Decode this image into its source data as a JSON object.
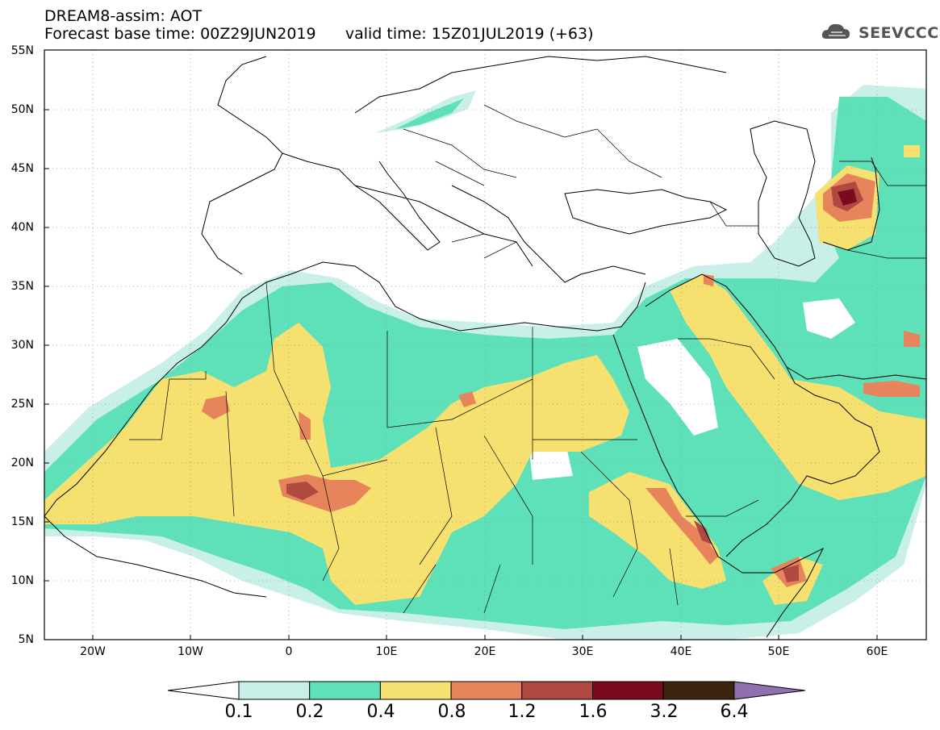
{
  "header": {
    "title": "DREAM8-assim: AOT",
    "subtitle": "Forecast base time: 00Z29JUN2019      valid time: 15Z01JUL2019 (+63)"
  },
  "logo": {
    "text": "SEEVCCC",
    "icon": "cloud-logo-icon"
  },
  "axes": {
    "lat_labels": [
      "55N",
      "50N",
      "45N",
      "40N",
      "35N",
      "30N",
      "25N",
      "20N",
      "15N",
      "10N",
      "5N"
    ],
    "lon_labels": [
      "20W",
      "10W",
      "0",
      "10E",
      "20E",
      "30E",
      "40E",
      "50E",
      "60E"
    ],
    "lat_range": [
      5,
      55
    ],
    "lon_range": [
      -25,
      65
    ],
    "gridlines": "dotted"
  },
  "colorbar": {
    "labels": [
      "0.1",
      "0.2",
      "0.4",
      "0.8",
      "1.2",
      "1.6",
      "3.2",
      "6.4"
    ],
    "colors": [
      "#ffffff",
      "#c8f0e8",
      "#5ee0b8",
      "#f5e070",
      "#e8845c",
      "#b04a40",
      "#7a0a1e",
      "#3c2410",
      "#9070b0"
    ]
  }
}
